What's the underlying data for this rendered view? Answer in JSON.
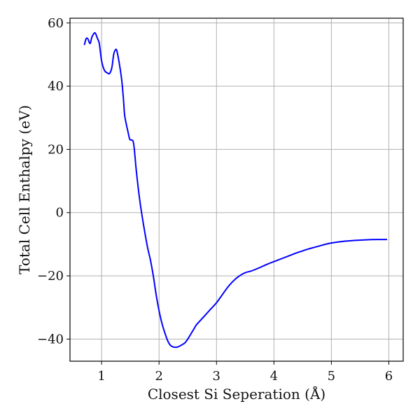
{
  "chart_data": {
    "type": "line",
    "xlabel": "Closest Si Seperation (Å)",
    "ylabel": "Total Cell Enthalpy (eV)",
    "xlim": [
      0.45,
      6.25
    ],
    "ylim": [
      -47,
      61.5
    ],
    "xticks": [
      1,
      2,
      3,
      4,
      5,
      6
    ],
    "yticks": [
      -40,
      -20,
      0,
      20,
      40,
      60
    ],
    "xtick_labels": [
      "1",
      "2",
      "3",
      "4",
      "5",
      "6"
    ],
    "ytick_labels": [
      "−40",
      "−20",
      "0",
      "20",
      "40",
      "60"
    ],
    "grid": true,
    "series": [
      {
        "color": "#0000ff",
        "x": [
          0.7,
          0.73,
          0.76,
          0.8,
          0.83,
          0.86,
          0.89,
          0.93,
          0.96,
          1.0,
          1.05,
          1.1,
          1.14,
          1.18,
          1.21,
          1.24,
          1.26,
          1.28,
          1.31,
          1.35,
          1.38,
          1.4,
          1.43,
          1.46,
          1.49,
          1.52,
          1.55,
          1.57,
          1.6,
          1.63,
          1.66,
          1.7,
          1.75,
          1.8,
          1.85,
          1.9,
          1.95,
          2.0,
          2.05,
          2.1,
          2.15,
          2.2,
          2.25,
          2.3,
          2.35,
          2.4,
          2.45,
          2.5,
          2.55,
          2.6,
          2.65,
          2.7,
          2.8,
          2.9,
          3.0,
          3.1,
          3.2,
          3.3,
          3.4,
          3.5,
          3.6,
          3.7,
          3.8,
          3.9,
          4.0,
          4.1,
          4.2,
          4.3,
          4.4,
          4.5,
          4.6,
          4.7,
          4.8,
          4.9,
          5.0,
          5.2,
          5.4,
          5.6,
          5.8,
          5.97
        ],
        "y": [
          53,
          55,
          55,
          53.5,
          55.5,
          56.5,
          56.8,
          55,
          53.5,
          48,
          45,
          44.2,
          44,
          46,
          50,
          51.5,
          51.5,
          50,
          47,
          42,
          36,
          31,
          28,
          25.5,
          23.2,
          23,
          22.5,
          20,
          14,
          9,
          4.5,
          -0.5,
          -6,
          -11,
          -15,
          -20,
          -26,
          -31,
          -35,
          -38,
          -40.5,
          -42,
          -42.5,
          -42.6,
          -42.3,
          -41.8,
          -41.2,
          -40,
          -38.5,
          -37,
          -35.5,
          -34.5,
          -32.5,
          -30.5,
          -28.5,
          -26,
          -23.5,
          -21.5,
          -20,
          -19,
          -18.5,
          -17.8,
          -17,
          -16.2,
          -15.5,
          -14.8,
          -14.1,
          -13.4,
          -12.7,
          -12.1,
          -11.5,
          -11,
          -10.5,
          -10,
          -9.6,
          -9.1,
          -8.8,
          -8.6,
          -8.5,
          -8.5
        ]
      }
    ]
  }
}
